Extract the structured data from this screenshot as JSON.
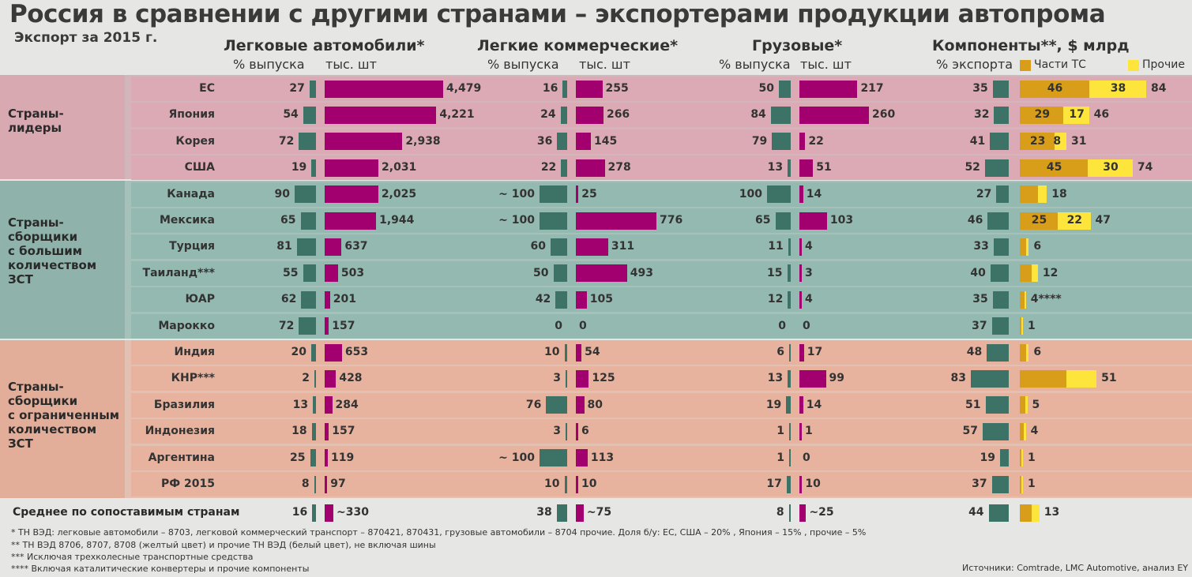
{
  "title": "Россия в сравнении с другими странами – экспортерами продукции автопрома",
  "subtitle": "Экспорт  за 2015 г.",
  "colors": {
    "share": "#3d7367",
    "prod": "#a2006e",
    "parts_vehicle": "#d89e1a",
    "parts_other": "#fde53c",
    "group1": "#d9a9b2",
    "group2": "#8fb3aa",
    "group3": "#e2ae9a",
    "rowbg1": "#dcaab5",
    "rowbg2": "#93b9b0",
    "rowbg3": "#e7b39e"
  },
  "columns": {
    "cars": {
      "title": "Легковые автомобили*",
      "pct": "% выпуска",
      "units": "тыс.  шт"
    },
    "lcv": {
      "title": "Легкие коммерческие*",
      "pct": "% выпуска",
      "units": "тыс.  шт"
    },
    "trucks": {
      "title": "Грузовые*",
      "pct": "% выпуска",
      "units": "тыс.  шт"
    },
    "components": {
      "title": "Компоненты**, $ млрд",
      "pct": "% экспорта",
      "legend_vehicle": "Части ТС",
      "legend_other": "Прочие"
    }
  },
  "groups": [
    {
      "label": "Страны-\nлидеры"
    },
    {
      "label": "Страны-\nсборщики\nс большим\nколичеством\nЗСТ"
    },
    {
      "label": "Страны-\nсборщики\nс ограниченным\nколичеством\nЗСТ"
    }
  ],
  "chart_data": {
    "type": "table",
    "title": "Россия в сравнении с другими странами – экспортерами продукции автопрома",
    "rows": [
      {
        "group": 0,
        "country": "ЕС",
        "cars_pct": 27,
        "cars_pct_label": "27",
        "cars_k": 4479,
        "cars_label": "4,479",
        "lcv_pct": 16,
        "lcv_pct_label": "16",
        "lcv_k": 255,
        "lcv_label": "255",
        "tr_pct": 50,
        "tr_pct_label": "50",
        "tr_k": 217,
        "tr_label": "217",
        "comp_pct": 35,
        "comp_pct_label": "35",
        "parts": 46,
        "parts_label": "46",
        "other": 38,
        "other_label": "38",
        "total_label": "84"
      },
      {
        "group": 0,
        "country": "Япония",
        "cars_pct": 54,
        "cars_pct_label": "54",
        "cars_k": 4221,
        "cars_label": "4,221",
        "lcv_pct": 24,
        "lcv_pct_label": "24",
        "lcv_k": 266,
        "lcv_label": "266",
        "tr_pct": 84,
        "tr_pct_label": "84",
        "tr_k": 260,
        "tr_label": "260",
        "comp_pct": 32,
        "comp_pct_label": "32",
        "parts": 29,
        "parts_label": "29",
        "other": 17,
        "other_label": "17",
        "total_label": "46"
      },
      {
        "group": 0,
        "country": "Корея",
        "cars_pct": 72,
        "cars_pct_label": "72",
        "cars_k": 2938,
        "cars_label": "2,938",
        "lcv_pct": 36,
        "lcv_pct_label": "36",
        "lcv_k": 145,
        "lcv_label": "145",
        "tr_pct": 79,
        "tr_pct_label": "79",
        "tr_k": 22,
        "tr_label": "22",
        "comp_pct": 41,
        "comp_pct_label": "41",
        "parts": 23,
        "parts_label": "23",
        "other": 8,
        "other_label": "8",
        "total_label": "31"
      },
      {
        "group": 0,
        "country": "США",
        "cars_pct": 19,
        "cars_pct_label": "19",
        "cars_k": 2031,
        "cars_label": "2,031",
        "lcv_pct": 22,
        "lcv_pct_label": "22",
        "lcv_k": 278,
        "lcv_label": "278",
        "tr_pct": 13,
        "tr_pct_label": "13",
        "tr_k": 51,
        "tr_label": "51",
        "comp_pct": 52,
        "comp_pct_label": "52",
        "parts": 45,
        "parts_label": "45",
        "other": 30,
        "other_label": "30",
        "total_label": "74"
      },
      {
        "group": 1,
        "country": "Канада",
        "cars_pct": 90,
        "cars_pct_label": "90",
        "cars_k": 2025,
        "cars_label": "2,025",
        "lcv_pct": 100,
        "lcv_pct_label": "~ 100",
        "lcv_k": 25,
        "lcv_label": "25",
        "tr_pct": 100,
        "tr_pct_label": "100",
        "tr_k": 14,
        "tr_label": "14",
        "comp_pct": 27,
        "comp_pct_label": "27",
        "parts": 12,
        "parts_label": "",
        "other": 6,
        "other_label": "",
        "total_label": "18"
      },
      {
        "group": 1,
        "country": "Мексика",
        "cars_pct": 65,
        "cars_pct_label": "65",
        "cars_k": 1944,
        "cars_label": "1,944",
        "lcv_pct": 100,
        "lcv_pct_label": "~ 100",
        "lcv_k": 776,
        "lcv_label": "776",
        "tr_pct": 65,
        "tr_pct_label": "65",
        "tr_k": 103,
        "tr_label": "103",
        "comp_pct": 46,
        "comp_pct_label": "46",
        "parts": 25,
        "parts_label": "25",
        "other": 22,
        "other_label": "22",
        "total_label": "47"
      },
      {
        "group": 1,
        "country": "Турция",
        "cars_pct": 81,
        "cars_pct_label": "81",
        "cars_k": 637,
        "cars_label": "637",
        "lcv_pct": 60,
        "lcv_pct_label": "60",
        "lcv_k": 311,
        "lcv_label": "311",
        "tr_pct": 11,
        "tr_pct_label": "11",
        "tr_k": 4,
        "tr_label": "4",
        "comp_pct": 33,
        "comp_pct_label": "33",
        "parts": 4,
        "parts_label": "",
        "other": 2,
        "other_label": "",
        "total_label": "6"
      },
      {
        "group": 1,
        "country": "Таиланд***",
        "cars_pct": 55,
        "cars_pct_label": "55",
        "cars_k": 503,
        "cars_label": "503",
        "lcv_pct": 50,
        "lcv_pct_label": "50",
        "lcv_k": 493,
        "lcv_label": "493",
        "tr_pct": 15,
        "tr_pct_label": "15",
        "tr_k": 3,
        "tr_label": "3",
        "comp_pct": 40,
        "comp_pct_label": "40",
        "parts": 8,
        "parts_label": "",
        "other": 4,
        "other_label": "",
        "total_label": "12"
      },
      {
        "group": 1,
        "country": "ЮАР",
        "cars_pct": 62,
        "cars_pct_label": "62",
        "cars_k": 201,
        "cars_label": "201",
        "lcv_pct": 42,
        "lcv_pct_label": "42",
        "lcv_k": 105,
        "lcv_label": "105",
        "tr_pct": 12,
        "tr_pct_label": "12",
        "tr_k": 4,
        "tr_label": "4",
        "comp_pct": 35,
        "comp_pct_label": "35",
        "parts": 3,
        "parts_label": "",
        "other": 1,
        "other_label": "",
        "total_label": "4****"
      },
      {
        "group": 1,
        "country": "Марокко",
        "cars_pct": 72,
        "cars_pct_label": "72",
        "cars_k": 157,
        "cars_label": "157",
        "lcv_pct": 0,
        "lcv_pct_label": "0",
        "lcv_k": 0,
        "lcv_label": "0",
        "tr_pct": 0,
        "tr_pct_label": "0",
        "tr_k": 0,
        "tr_label": "0",
        "comp_pct": 37,
        "comp_pct_label": "37",
        "parts": 0.7,
        "parts_label": "",
        "other": 0.3,
        "other_label": "",
        "total_label": "1"
      },
      {
        "group": 2,
        "country": "Индия",
        "cars_pct": 20,
        "cars_pct_label": "20",
        "cars_k": 653,
        "cars_label": "653",
        "lcv_pct": 10,
        "lcv_pct_label": "10",
        "lcv_k": 54,
        "lcv_label": "54",
        "tr_pct": 6,
        "tr_pct_label": "6",
        "tr_k": 17,
        "tr_label": "17",
        "comp_pct": 48,
        "comp_pct_label": "48",
        "parts": 4,
        "parts_label": "",
        "other": 2,
        "other_label": "",
        "total_label": "6"
      },
      {
        "group": 2,
        "country": "КНР***",
        "cars_pct": 2,
        "cars_pct_label": "2",
        "cars_k": 428,
        "cars_label": "428",
        "lcv_pct": 3,
        "lcv_pct_label": "3",
        "lcv_k": 125,
        "lcv_label": "125",
        "tr_pct": 13,
        "tr_pct_label": "13",
        "tr_k": 99,
        "tr_label": "99",
        "comp_pct": 83,
        "comp_pct_label": "83",
        "parts": 31,
        "parts_label": "",
        "other": 20,
        "other_label": "",
        "total_label": "51"
      },
      {
        "group": 2,
        "country": "Бразилия",
        "cars_pct": 13,
        "cars_pct_label": "13",
        "cars_k": 284,
        "cars_label": "284",
        "lcv_pct": 76,
        "lcv_pct_label": "76",
        "lcv_k": 80,
        "lcv_label": "80",
        "tr_pct": 19,
        "tr_pct_label": "19",
        "tr_k": 14,
        "tr_label": "14",
        "comp_pct": 51,
        "comp_pct_label": "51",
        "parts": 3.5,
        "parts_label": "",
        "other": 1.5,
        "other_label": "",
        "total_label": "5"
      },
      {
        "group": 2,
        "country": "Индонезия",
        "cars_pct": 18,
        "cars_pct_label": "18",
        "cars_k": 157,
        "cars_label": "157",
        "lcv_pct": 3,
        "lcv_pct_label": "3",
        "lcv_k": 6,
        "lcv_label": "6",
        "tr_pct": 1,
        "tr_pct_label": "1",
        "tr_k": 1,
        "tr_label": "1",
        "comp_pct": 57,
        "comp_pct_label": "57",
        "parts": 2.5,
        "parts_label": "",
        "other": 1.5,
        "other_label": "",
        "total_label": "4"
      },
      {
        "group": 2,
        "country": "Аргентина",
        "cars_pct": 25,
        "cars_pct_label": "25",
        "cars_k": 119,
        "cars_label": "119",
        "lcv_pct": 100,
        "lcv_pct_label": "~ 100",
        "lcv_k": 113,
        "lcv_label": "113",
        "tr_pct": 1,
        "tr_pct_label": "1",
        "tr_k": 0,
        "tr_label": "0",
        "comp_pct": 19,
        "comp_pct_label": "19",
        "parts": 0.6,
        "parts_label": "",
        "other": 0.4,
        "other_label": "",
        "total_label": "1"
      },
      {
        "group": 2,
        "country": "РФ 2015",
        "cars_pct": 8,
        "cars_pct_label": "8",
        "cars_k": 97,
        "cars_label": "97",
        "lcv_pct": 10,
        "lcv_pct_label": "10",
        "lcv_k": 10,
        "lcv_label": "10",
        "tr_pct": 17,
        "tr_pct_label": "17",
        "tr_k": 10,
        "tr_label": "10",
        "comp_pct": 37,
        "comp_pct_label": "37",
        "parts": 0.5,
        "parts_label": "",
        "other": 0.5,
        "other_label": "",
        "total_label": "1"
      }
    ],
    "average": {
      "label": "Среднее по сопоставимым странам",
      "cars_pct": 16,
      "cars_pct_label": "16",
      "cars_k": 330,
      "cars_label": "~330",
      "lcv_pct": 38,
      "lcv_pct_label": "38",
      "lcv_k": 75,
      "lcv_label": "~75",
      "tr_pct": 8,
      "tr_pct_label": "8",
      "tr_k": 25,
      "tr_label": "~25",
      "comp_pct": 44,
      "comp_pct_label": "44",
      "parts": 8,
      "parts_label": "",
      "other": 5,
      "other_label": "",
      "total_label": "13"
    }
  },
  "footnotes": [
    "* ТН ВЭД: легковые автомобили – 8703, легковой коммерческий транспорт – 870421, 870431, грузовые автомобили – 8704 прочие. Доля б/у: ЕС, США – 20% , Япония – 15% , прочие – 5%",
    "** ТН ВЭД 8706, 8707, 8708 (желтый цвет) и прочие ТН ВЭД (белый цвет), не включая шины",
    "*** Исключая трехколесные транспортные средства",
    "**** Включая каталитические конвертеры и прочие компоненты"
  ],
  "source": "Источники: Comtrade, LMC Automotive, анализ EY"
}
